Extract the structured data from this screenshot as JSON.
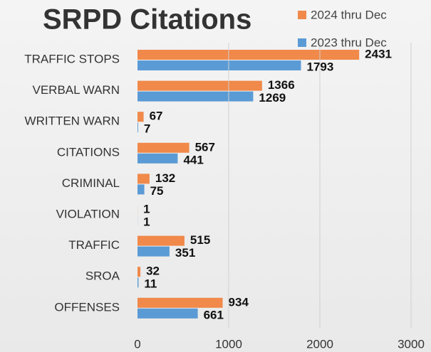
{
  "chart_data": {
    "type": "bar",
    "orientation": "horizontal",
    "title": "SRPD Citations",
    "categories": [
      "TRAFFIC STOPS",
      "VERBAL WARN",
      "WRITTEN WARN",
      "CITATIONS",
      "CRIMINAL",
      "VIOLATION",
      "TRAFFIC",
      "SROA",
      "OFFENSES"
    ],
    "series": [
      {
        "name": "2024 thru Dec",
        "color": "#f0894a",
        "values": [
          2431,
          1366,
          67,
          567,
          132,
          1,
          515,
          32,
          934
        ]
      },
      {
        "name": "2023 thru Dec",
        "color": "#5b9bd5",
        "values": [
          1793,
          1269,
          7,
          441,
          75,
          1,
          351,
          11,
          661
        ]
      }
    ],
    "xlim": [
      0,
      3000
    ],
    "xticks": [
      0,
      1000,
      2000,
      3000
    ],
    "grid": true
  }
}
